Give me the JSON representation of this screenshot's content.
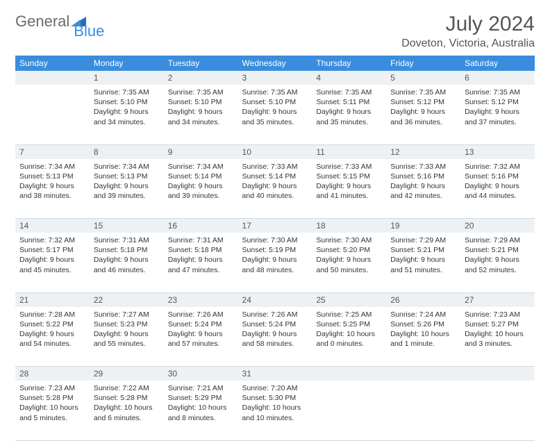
{
  "logo": {
    "word1": "General",
    "word2": "Blue",
    "triangle_color": "#2a6fb5"
  },
  "title": "July 2024",
  "location": "Doveton, Victoria, Australia",
  "colors": {
    "header_bg": "#3a8dde",
    "header_text": "#ffffff",
    "daynum_bg": "#eef1f4",
    "text": "#333333",
    "rule": "#cfd8e0",
    "page_bg": "#ffffff"
  },
  "fonts": {
    "title_size": 30,
    "location_size": 16,
    "th_size": 12,
    "cell_size": 10.5
  },
  "day_headers": [
    "Sunday",
    "Monday",
    "Tuesday",
    "Wednesday",
    "Thursday",
    "Friday",
    "Saturday"
  ],
  "weeks": [
    {
      "daynums": [
        "",
        "1",
        "2",
        "3",
        "4",
        "5",
        "6"
      ],
      "cells": [
        null,
        {
          "sunrise": "Sunrise: 7:35 AM",
          "sunset": "Sunset: 5:10 PM",
          "daylight": "Daylight: 9 hours and 34 minutes."
        },
        {
          "sunrise": "Sunrise: 7:35 AM",
          "sunset": "Sunset: 5:10 PM",
          "daylight": "Daylight: 9 hours and 34 minutes."
        },
        {
          "sunrise": "Sunrise: 7:35 AM",
          "sunset": "Sunset: 5:10 PM",
          "daylight": "Daylight: 9 hours and 35 minutes."
        },
        {
          "sunrise": "Sunrise: 7:35 AM",
          "sunset": "Sunset: 5:11 PM",
          "daylight": "Daylight: 9 hours and 35 minutes."
        },
        {
          "sunrise": "Sunrise: 7:35 AM",
          "sunset": "Sunset: 5:12 PM",
          "daylight": "Daylight: 9 hours and 36 minutes."
        },
        {
          "sunrise": "Sunrise: 7:35 AM",
          "sunset": "Sunset: 5:12 PM",
          "daylight": "Daylight: 9 hours and 37 minutes."
        }
      ]
    },
    {
      "daynums": [
        "7",
        "8",
        "9",
        "10",
        "11",
        "12",
        "13"
      ],
      "cells": [
        {
          "sunrise": "Sunrise: 7:34 AM",
          "sunset": "Sunset: 5:13 PM",
          "daylight": "Daylight: 9 hours and 38 minutes."
        },
        {
          "sunrise": "Sunrise: 7:34 AM",
          "sunset": "Sunset: 5:13 PM",
          "daylight": "Daylight: 9 hours and 39 minutes."
        },
        {
          "sunrise": "Sunrise: 7:34 AM",
          "sunset": "Sunset: 5:14 PM",
          "daylight": "Daylight: 9 hours and 39 minutes."
        },
        {
          "sunrise": "Sunrise: 7:33 AM",
          "sunset": "Sunset: 5:14 PM",
          "daylight": "Daylight: 9 hours and 40 minutes."
        },
        {
          "sunrise": "Sunrise: 7:33 AM",
          "sunset": "Sunset: 5:15 PM",
          "daylight": "Daylight: 9 hours and 41 minutes."
        },
        {
          "sunrise": "Sunrise: 7:33 AM",
          "sunset": "Sunset: 5:16 PM",
          "daylight": "Daylight: 9 hours and 42 minutes."
        },
        {
          "sunrise": "Sunrise: 7:32 AM",
          "sunset": "Sunset: 5:16 PM",
          "daylight": "Daylight: 9 hours and 44 minutes."
        }
      ]
    },
    {
      "daynums": [
        "14",
        "15",
        "16",
        "17",
        "18",
        "19",
        "20"
      ],
      "cells": [
        {
          "sunrise": "Sunrise: 7:32 AM",
          "sunset": "Sunset: 5:17 PM",
          "daylight": "Daylight: 9 hours and 45 minutes."
        },
        {
          "sunrise": "Sunrise: 7:31 AM",
          "sunset": "Sunset: 5:18 PM",
          "daylight": "Daylight: 9 hours and 46 minutes."
        },
        {
          "sunrise": "Sunrise: 7:31 AM",
          "sunset": "Sunset: 5:18 PM",
          "daylight": "Daylight: 9 hours and 47 minutes."
        },
        {
          "sunrise": "Sunrise: 7:30 AM",
          "sunset": "Sunset: 5:19 PM",
          "daylight": "Daylight: 9 hours and 48 minutes."
        },
        {
          "sunrise": "Sunrise: 7:30 AM",
          "sunset": "Sunset: 5:20 PM",
          "daylight": "Daylight: 9 hours and 50 minutes."
        },
        {
          "sunrise": "Sunrise: 7:29 AM",
          "sunset": "Sunset: 5:21 PM",
          "daylight": "Daylight: 9 hours and 51 minutes."
        },
        {
          "sunrise": "Sunrise: 7:29 AM",
          "sunset": "Sunset: 5:21 PM",
          "daylight": "Daylight: 9 hours and 52 minutes."
        }
      ]
    },
    {
      "daynums": [
        "21",
        "22",
        "23",
        "24",
        "25",
        "26",
        "27"
      ],
      "cells": [
        {
          "sunrise": "Sunrise: 7:28 AM",
          "sunset": "Sunset: 5:22 PM",
          "daylight": "Daylight: 9 hours and 54 minutes."
        },
        {
          "sunrise": "Sunrise: 7:27 AM",
          "sunset": "Sunset: 5:23 PM",
          "daylight": "Daylight: 9 hours and 55 minutes."
        },
        {
          "sunrise": "Sunrise: 7:26 AM",
          "sunset": "Sunset: 5:24 PM",
          "daylight": "Daylight: 9 hours and 57 minutes."
        },
        {
          "sunrise": "Sunrise: 7:26 AM",
          "sunset": "Sunset: 5:24 PM",
          "daylight": "Daylight: 9 hours and 58 minutes."
        },
        {
          "sunrise": "Sunrise: 7:25 AM",
          "sunset": "Sunset: 5:25 PM",
          "daylight": "Daylight: 10 hours and 0 minutes."
        },
        {
          "sunrise": "Sunrise: 7:24 AM",
          "sunset": "Sunset: 5:26 PM",
          "daylight": "Daylight: 10 hours and 1 minute."
        },
        {
          "sunrise": "Sunrise: 7:23 AM",
          "sunset": "Sunset: 5:27 PM",
          "daylight": "Daylight: 10 hours and 3 minutes."
        }
      ]
    },
    {
      "daynums": [
        "28",
        "29",
        "30",
        "31",
        "",
        "",
        ""
      ],
      "cells": [
        {
          "sunrise": "Sunrise: 7:23 AM",
          "sunset": "Sunset: 5:28 PM",
          "daylight": "Daylight: 10 hours and 5 minutes."
        },
        {
          "sunrise": "Sunrise: 7:22 AM",
          "sunset": "Sunset: 5:28 PM",
          "daylight": "Daylight: 10 hours and 6 minutes."
        },
        {
          "sunrise": "Sunrise: 7:21 AM",
          "sunset": "Sunset: 5:29 PM",
          "daylight": "Daylight: 10 hours and 8 minutes."
        },
        {
          "sunrise": "Sunrise: 7:20 AM",
          "sunset": "Sunset: 5:30 PM",
          "daylight": "Daylight: 10 hours and 10 minutes."
        },
        null,
        null,
        null
      ]
    }
  ]
}
